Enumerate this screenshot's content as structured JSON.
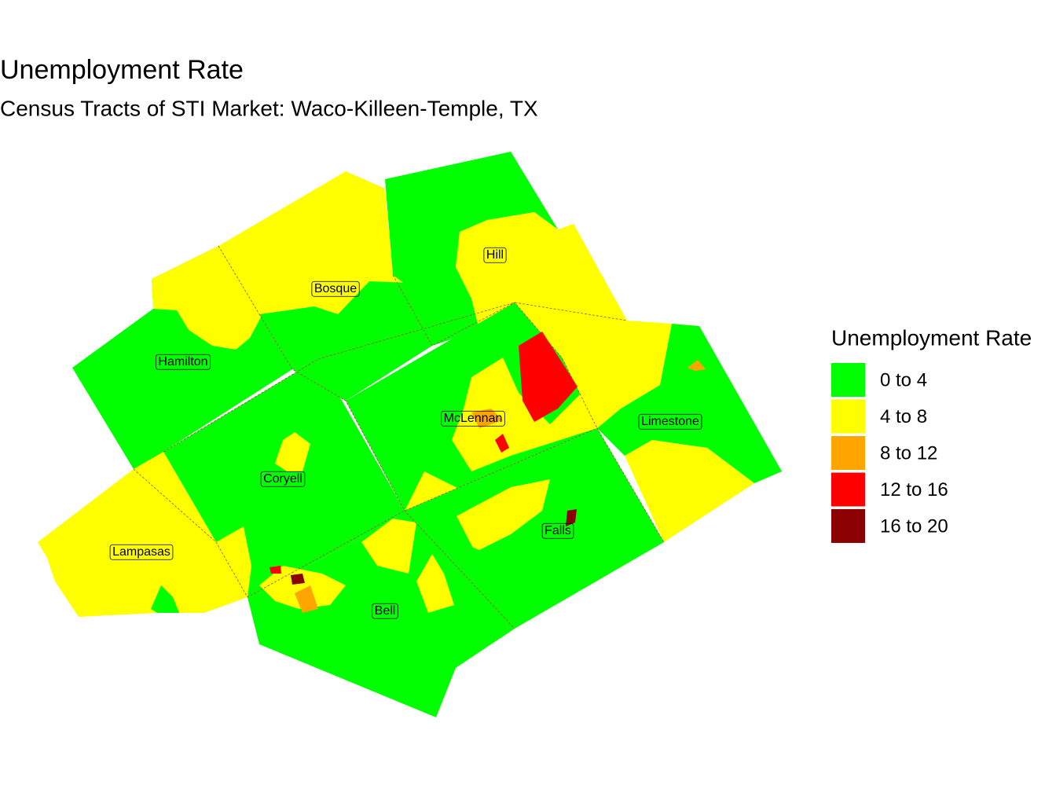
{
  "title": "Unemployment Rate",
  "subtitle": "Census Tracts of STI Market: Waco-Killeen-Temple, TX",
  "legend": {
    "title": "Unemployment Rate",
    "items": [
      {
        "label": "0 to 4",
        "color": "#00ff00"
      },
      {
        "label": "4 to 8",
        "color": "#ffff00"
      },
      {
        "label": "8 to 12",
        "color": "#ffa500"
      },
      {
        "label": "12 to 16",
        "color": "#ff0000"
      },
      {
        "label": "16 to 20",
        "color": "#8b0000"
      }
    ]
  },
  "counties": [
    {
      "label": "Hill"
    },
    {
      "label": "Bosque"
    },
    {
      "label": "Hamilton"
    },
    {
      "label": "McLennan"
    },
    {
      "label": "Limestone"
    },
    {
      "label": "Coryell"
    },
    {
      "label": "Falls"
    },
    {
      "label": "Lampasas"
    },
    {
      "label": "Bell"
    }
  ]
}
